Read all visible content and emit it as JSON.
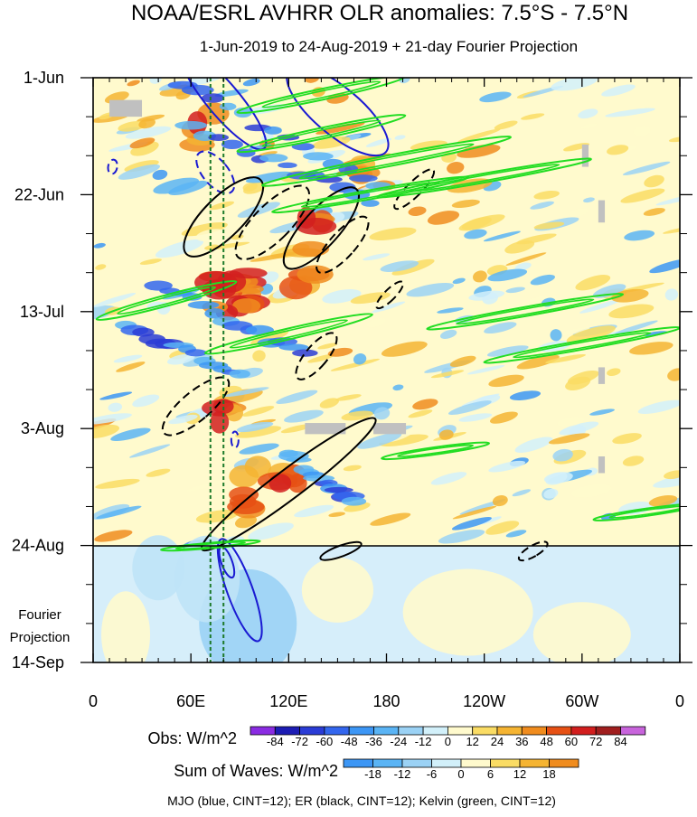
{
  "chart_data": {
    "type": "heatmap",
    "title": "NOAA/ESRL AVHRR OLR anomalies: 7.5°S - 7.5°N",
    "subtitle": "1-Jun-2019 to 24-Aug-2019 + 21-day Fourier Projection",
    "x_ticks": [
      "0",
      "60E",
      "120E",
      "180",
      "120W",
      "60W",
      "0"
    ],
    "x_tick_lons": [
      0,
      60,
      120,
      180,
      240,
      300,
      360
    ],
    "y_ticks": [
      "1-Jun",
      "22-Jun",
      "13-Jul",
      "3-Aug",
      "24-Aug",
      "14-Sep"
    ],
    "y_tick_days": [
      0,
      21,
      42,
      63,
      84,
      105
    ],
    "observed_end_day": 84,
    "projection_label": [
      "Fourier",
      "Projection"
    ],
    "obs_colorbar": {
      "label": "Obs: W/m^2",
      "ticks": [
        "-84",
        "-72",
        "-60",
        "-48",
        "-36",
        "-24",
        "-12",
        "0",
        "12",
        "24",
        "36",
        "48",
        "60",
        "72",
        "84"
      ],
      "colors": [
        "#8a2be2",
        "#1c1cb4",
        "#2a3cd6",
        "#3366ee",
        "#3c96f5",
        "#5ab4f5",
        "#9bd2f5",
        "#d2f0fa",
        "#fffacd",
        "#fadc64",
        "#f5b432",
        "#f08c1e",
        "#e65014",
        "#d21e1e",
        "#a01e1e",
        "#c864dc"
      ]
    },
    "waves_colorbar": {
      "label": "Sum of Waves: W/m^2",
      "ticks": [
        "-18",
        "-12",
        "-6",
        "0",
        "6",
        "12",
        "18"
      ],
      "colors": [
        "#3c96f5",
        "#5ab4f5",
        "#9bd2f5",
        "#d2f0fa",
        "#fffacd",
        "#fadc64",
        "#f5b432",
        "#f08c1e"
      ]
    },
    "legend": "MJO (blue, CINT=12); ER (black, CINT=12); Kelvin (green, CINT=12)",
    "contour_series": [
      {
        "name": "MJO",
        "color": "#1a1ad2",
        "cint": 12
      },
      {
        "name": "ER",
        "color": "#000000",
        "cint": 12
      },
      {
        "name": "Kelvin",
        "color": "#22dd22",
        "cint": 12
      }
    ],
    "reference_lines_lon": [
      72,
      80
    ]
  }
}
